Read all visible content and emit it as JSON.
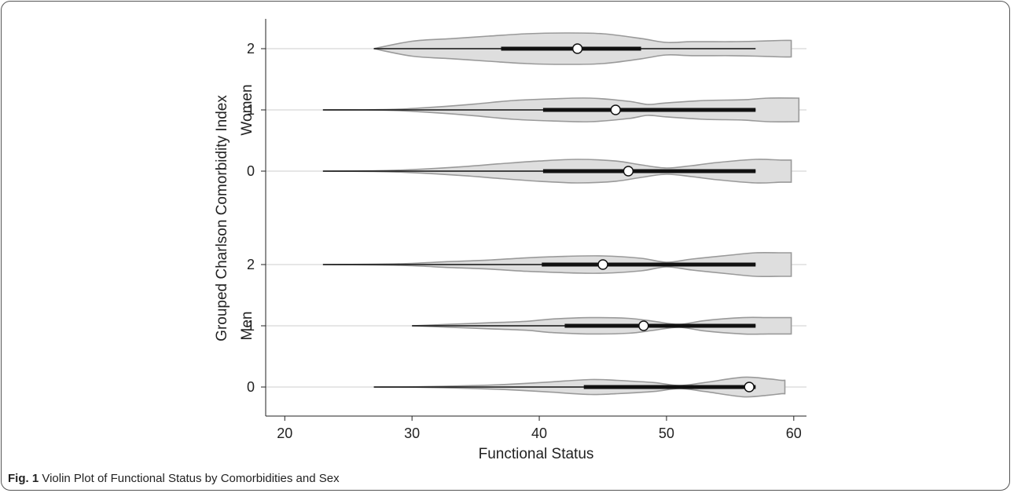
{
  "chart_data": {
    "type": "violin",
    "orientation": "horizontal",
    "xlabel": "Functional Status",
    "ylabel": "Grouped Charlson Comorbidity Index",
    "xlim": [
      18.5,
      61
    ],
    "xticks": [
      20,
      30,
      40,
      50,
      60
    ],
    "grid": "horizontal lines at each category",
    "groups": [
      {
        "name": "Women",
        "rows": [
          {
            "category": "2",
            "min": 27,
            "q1": 37,
            "median": 43,
            "q3": 48,
            "max": 57,
            "profile": [
              [
                27,
                0.0
              ],
              [
                30,
                0.5
              ],
              [
                33,
                0.67
              ],
              [
                36,
                0.84
              ],
              [
                39,
                1.0
              ],
              [
                42,
                1.05
              ],
              [
                45,
                1.0
              ],
              [
                48,
                0.68
              ],
              [
                50,
                0.42
              ],
              [
                52,
                0.47
              ],
              [
                55,
                0.47
              ],
              [
                57,
                0.5
              ],
              [
                59,
                0.55
              ],
              [
                59.8,
                0.55
              ]
            ]
          },
          {
            "category": "1",
            "min": 23,
            "q1": 40.3,
            "median": 46,
            "q3": 57,
            "max": 57,
            "profile": [
              [
                23,
                0.0
              ],
              [
                26,
                0.0
              ],
              [
                29,
                0.05
              ],
              [
                32,
                0.2
              ],
              [
                35,
                0.4
              ],
              [
                38,
                0.63
              ],
              [
                41,
                0.74
              ],
              [
                44,
                0.79
              ],
              [
                47,
                0.58
              ],
              [
                48.5,
                0.37
              ],
              [
                50,
                0.47
              ],
              [
                53,
                0.63
              ],
              [
                56,
                0.68
              ],
              [
                58,
                0.79
              ],
              [
                60.4,
                0.79
              ]
            ]
          },
          {
            "category": "0",
            "min": 23,
            "q1": 40.3,
            "median": 47,
            "q3": 57,
            "max": 57,
            "profile": [
              [
                23,
                0.0
              ],
              [
                27,
                0.02
              ],
              [
                30,
                0.1
              ],
              [
                34,
                0.3
              ],
              [
                37,
                0.5
              ],
              [
                40,
                0.68
              ],
              [
                43,
                0.79
              ],
              [
                46,
                0.68
              ],
              [
                48,
                0.42
              ],
              [
                50,
                0.21
              ],
              [
                52,
                0.37
              ],
              [
                54,
                0.58
              ],
              [
                57,
                0.79
              ],
              [
                59,
                0.74
              ],
              [
                59.8,
                0.74
              ]
            ]
          }
        ]
      },
      {
        "name": "Men",
        "rows": [
          {
            "category": "2",
            "min": 23,
            "q1": 40.2,
            "median": 45,
            "q3": 57,
            "max": 57,
            "profile": [
              [
                23,
                0.0
              ],
              [
                27,
                0.02
              ],
              [
                30,
                0.08
              ],
              [
                33,
                0.2
              ],
              [
                36,
                0.3
              ],
              [
                39,
                0.45
              ],
              [
                42,
                0.55
              ],
              [
                45,
                0.58
              ],
              [
                48,
                0.42
              ],
              [
                50,
                0.16
              ],
              [
                52,
                0.37
              ],
              [
                55,
                0.63
              ],
              [
                57,
                0.79
              ],
              [
                59,
                0.79
              ],
              [
                59.8,
                0.79
              ]
            ]
          },
          {
            "category": "1",
            "min": 30,
            "q1": 42,
            "median": 48.2,
            "q3": 57,
            "max": 57,
            "profile": [
              [
                30,
                0.0
              ],
              [
                33,
                0.1
              ],
              [
                36,
                0.2
              ],
              [
                39,
                0.3
              ],
              [
                41,
                0.45
              ],
              [
                44,
                0.55
              ],
              [
                47,
                0.5
              ],
              [
                49,
                0.3
              ],
              [
                51,
                0.1
              ],
              [
                53,
                0.35
              ],
              [
                56,
                0.55
              ],
              [
                58,
                0.55
              ],
              [
                59.8,
                0.55
              ]
            ]
          },
          {
            "category": "0",
            "min": 27,
            "q1": 43.5,
            "median": 56.5,
            "q3": 57,
            "max": 57,
            "profile": [
              [
                27,
                0.0
              ],
              [
                30,
                0.01
              ],
              [
                35,
                0.1
              ],
              [
                38,
                0.2
              ],
              [
                41,
                0.35
              ],
              [
                44,
                0.5
              ],
              [
                46,
                0.45
              ],
              [
                49,
                0.3
              ],
              [
                51,
                0.1
              ],
              [
                53,
                0.3
              ],
              [
                56,
                0.65
              ],
              [
                58,
                0.55
              ],
              [
                59,
                0.45
              ],
              [
                59.3,
                0.45
              ]
            ]
          }
        ]
      }
    ]
  },
  "caption": {
    "label": "Fig. 1",
    "text": "Violin Plot of Functional Status by Comorbidities and Sex"
  }
}
